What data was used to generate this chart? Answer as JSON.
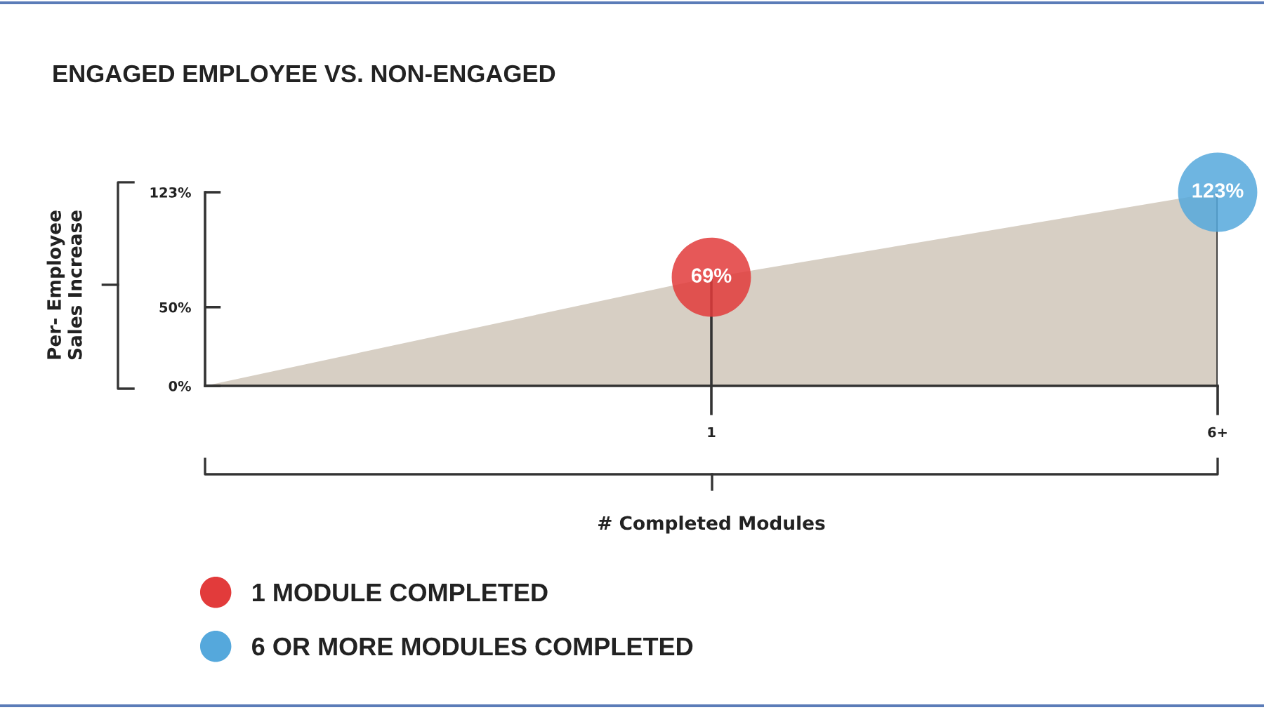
{
  "chart_data": {
    "type": "area",
    "title": "ENGAGED EMPLOYEE VS. NON-ENGAGED",
    "xlabel": "# Completed Modules",
    "ylabel": "Per- Employee\nSales Increase",
    "categories": [
      null,
      "1",
      "6+"
    ],
    "series": [
      {
        "color": "#d7cfc4",
        "values": [
          0,
          69,
          123
        ]
      },
      {
        "type": "lollipop",
        "marker": "circle",
        "name": "1 MODULE COMPLETED",
        "color": "#e23b3b",
        "values": [
          null,
          69,
          null
        ],
        "value_labels": [
          null,
          "69%",
          null
        ]
      },
      {
        "type": "lollipop",
        "marker": "circle",
        "name": "6 OR MORE MODULES COMPLETED",
        "color": "#55a8dc",
        "values": [
          null,
          null,
          123
        ],
        "value_labels": [
          null,
          null,
          "123%"
        ]
      }
    ],
    "ylim": [
      0,
      123
    ],
    "yticks": [
      {
        "value": 0,
        "label": "0%"
      },
      {
        "value": 50,
        "label": "50%"
      },
      {
        "value": 123,
        "label": "123%"
      }
    ],
    "legend": "bottom left"
  }
}
